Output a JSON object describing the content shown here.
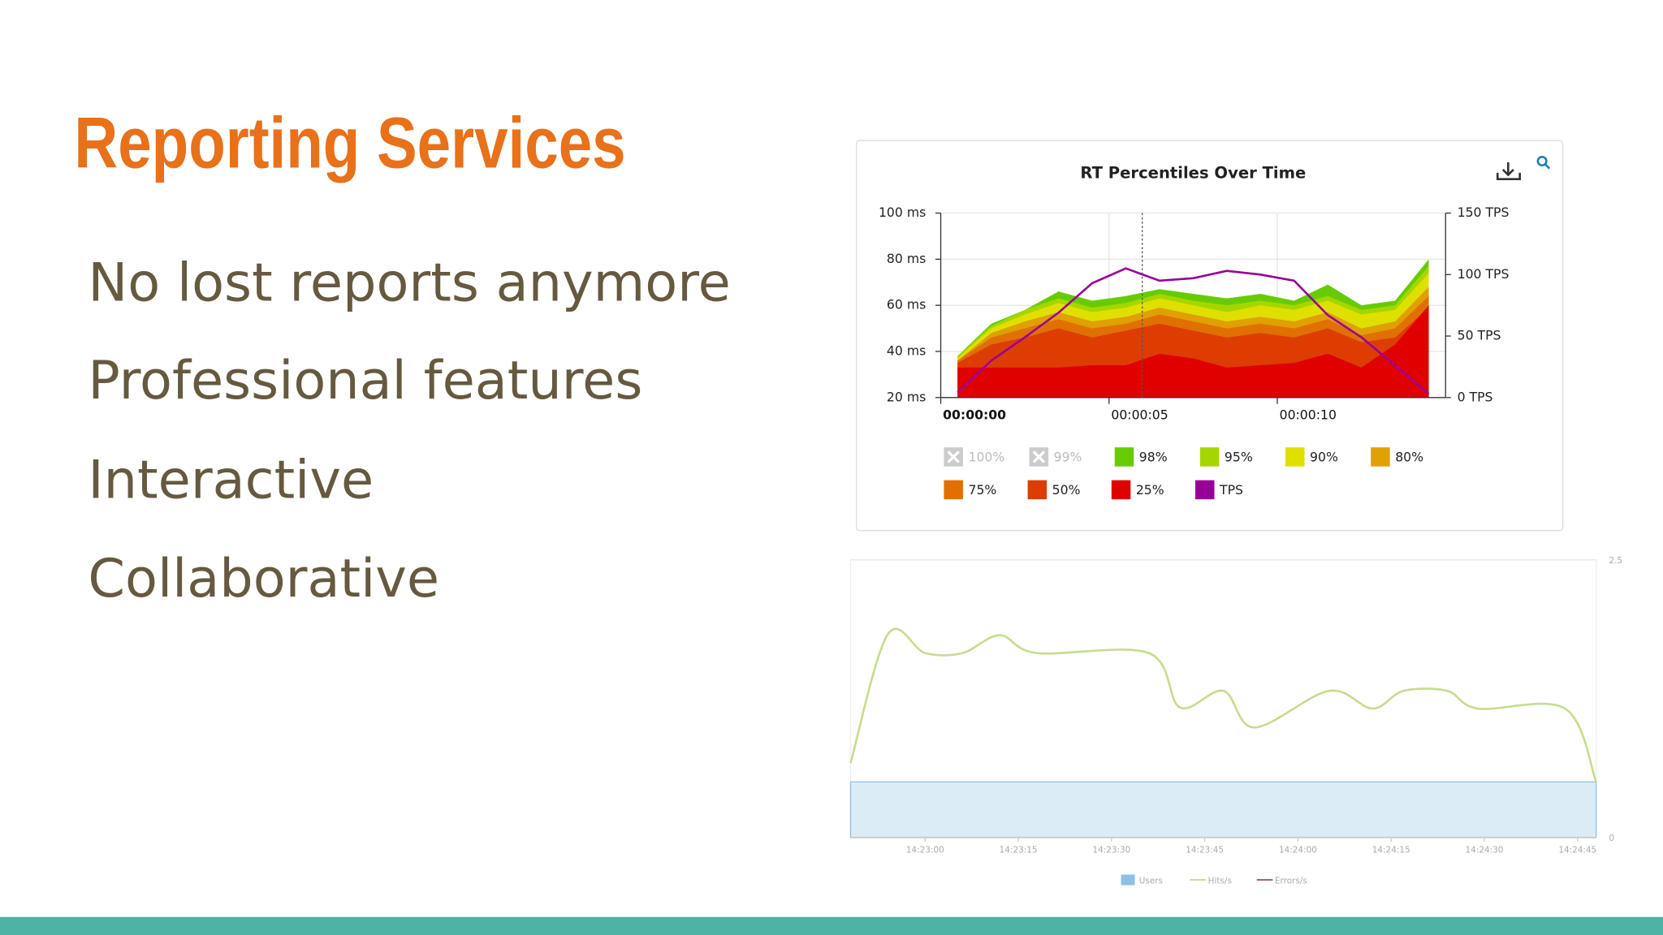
{
  "slide": {
    "title": "Reporting Services",
    "bullets": [
      "No lost reports anymore",
      "Professional features",
      "Interactive",
      "Collaborative"
    ]
  },
  "chart_data": [
    {
      "type": "area",
      "title": "RT Percentiles Over Time",
      "x": [
        0.5,
        1.5,
        2.5,
        3.5,
        4.5,
        5.5,
        6.5,
        7.5,
        8.5,
        9.5,
        10.5,
        11.5,
        12.5,
        13.5,
        14.5
      ],
      "xlim": [
        0,
        15
      ],
      "xticks": [
        {
          "value": 0,
          "label": "00:00:00"
        },
        {
          "value": 5,
          "label": "00:00:05"
        },
        {
          "value": 10,
          "label": "00:00:10"
        }
      ],
      "ylim": [
        20,
        100
      ],
      "yticks": [
        {
          "value": 20,
          "label": "20 ms"
        },
        {
          "value": 40,
          "label": "40 ms"
        },
        {
          "value": 60,
          "label": "60 ms"
        },
        {
          "value": 80,
          "label": "80 ms"
        },
        {
          "value": 100,
          "label": "100 ms"
        }
      ],
      "y2lim": [
        0,
        150
      ],
      "y2ticks": [
        {
          "value": 0,
          "label": "0 TPS"
        },
        {
          "value": 50,
          "label": "50 TPS"
        },
        {
          "value": 100,
          "label": "100 TPS"
        },
        {
          "value": 150,
          "label": "150 TPS"
        }
      ],
      "grid": true,
      "series": [
        {
          "name": "100%",
          "color": "#cccccc",
          "hidden": true
        },
        {
          "name": "99%",
          "color": "#cccccc",
          "hidden": true
        },
        {
          "name": "98%",
          "color": "#66cc00",
          "values": [
            38,
            52,
            58,
            66,
            62,
            64,
            67,
            65,
            63,
            65,
            62,
            69,
            60,
            62,
            80
          ]
        },
        {
          "name": "95%",
          "color": "#a6d600",
          "values": [
            38,
            51,
            58,
            63,
            59,
            61,
            65,
            62,
            60,
            62,
            60,
            64,
            58,
            60,
            77
          ]
        },
        {
          "name": "90%",
          "color": "#e0e000",
          "values": [
            37,
            50,
            56,
            61,
            57,
            59,
            63,
            60,
            57,
            60,
            58,
            62,
            56,
            58,
            74
          ]
        },
        {
          "name": "80%",
          "color": "#e0a000",
          "values": [
            36,
            48,
            53,
            57,
            53,
            55,
            59,
            56,
            53,
            55,
            53,
            57,
            50,
            53,
            68
          ]
        },
        {
          "name": "75%",
          "color": "#e07000",
          "values": [
            36,
            46,
            50,
            54,
            50,
            52,
            56,
            53,
            50,
            52,
            50,
            54,
            47,
            50,
            64
          ]
        },
        {
          "name": "50%",
          "color": "#dd3d00",
          "values": [
            35,
            43,
            46,
            50,
            46,
            49,
            52,
            49,
            46,
            48,
            46,
            50,
            44,
            46,
            59
          ]
        },
        {
          "name": "25%",
          "color": "#e00000",
          "values": [
            33,
            33,
            33,
            33,
            34,
            34,
            39,
            37,
            33,
            34,
            35,
            39,
            33,
            43,
            60
          ]
        },
        {
          "name": "TPS",
          "color": "#990099",
          "type": "line",
          "axis": "y2",
          "values": [
            4,
            30,
            49,
            69,
            93,
            105,
            95,
            97,
            103,
            100,
            95,
            67,
            49,
            26,
            3
          ]
        }
      ]
    },
    {
      "type": "line",
      "x": [
        "14:22:48",
        "14:22:54",
        "14:23:00",
        "14:23:06",
        "14:23:12",
        "14:23:18",
        "14:23:36",
        "14:23:41",
        "14:23:48",
        "14:23:53",
        "14:24:05",
        "14:24:12",
        "14:24:17",
        "14:24:24",
        "14:24:29",
        "14:24:43",
        "14:24:48"
      ],
      "xlim": [
        "14:22:48",
        "14:24:48"
      ],
      "xticks": [
        "14:23:00",
        "14:23:15",
        "14:23:30",
        "14:23:45",
        "14:24:00",
        "14:24:15",
        "14:24:30",
        "14:24:45"
      ],
      "y2lim": [
        0,
        2.5
      ],
      "y2ticks": [
        0,
        2.5
      ],
      "grid": true,
      "series": [
        {
          "name": "Users",
          "color": "#8cc0e4",
          "type": "area",
          "axis": "y2",
          "values": [
            0.5,
            0.5,
            0.5,
            0.5,
            0.5,
            0.5,
            0.5,
            0.5,
            0.5,
            0.5,
            0.5,
            0.5,
            0.5,
            0.5,
            0.5,
            0.5,
            0.5
          ]
        },
        {
          "name": "Hits/s",
          "color": "#c5dc8f",
          "axis": "y2",
          "values": [
            0.67,
            1.83,
            1.66,
            1.66,
            1.82,
            1.66,
            1.66,
            1.17,
            1.32,
            0.99,
            1.32,
            1.16,
            1.32,
            1.32,
            1.16,
            1.16,
            0.5
          ]
        },
        {
          "name": "Errors/s",
          "color": "#a0508a"
        }
      ]
    }
  ]
}
